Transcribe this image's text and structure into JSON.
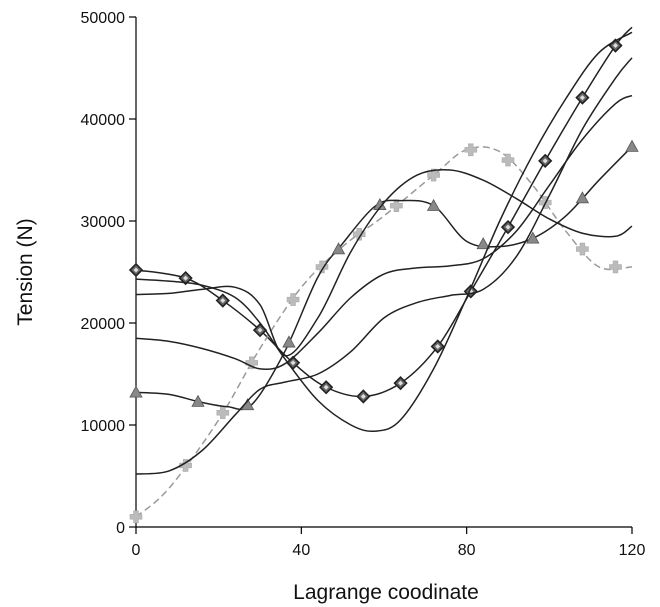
{
  "chart_data": {
    "type": "line",
    "title": "",
    "xlabel": "Lagrange coodinate",
    "ylabel": "Tension (N)",
    "xlim": [
      0,
      120
    ],
    "ylim": [
      0,
      50000
    ],
    "x_ticks": [
      0,
      40,
      80,
      120
    ],
    "y_ticks": [
      0,
      10000,
      20000,
      30000,
      40000,
      50000
    ],
    "x_tick_labels": [
      "0",
      "40",
      "80",
      "120"
    ],
    "y_tick_labels": [
      "0",
      "10000",
      "20000",
      "30000",
      "40000",
      "50000"
    ],
    "grid": false,
    "legend": "none",
    "series": [
      {
        "color": "#222222",
        "dash": "solid",
        "marker": "diamond",
        "marker_color": "#666666",
        "x": [
          0,
          12,
          21,
          30,
          38,
          46,
          55,
          64,
          73,
          81,
          90,
          99,
          108,
          116,
          120
        ],
        "y": [
          25200,
          24400,
          22200,
          19300,
          16100,
          13700,
          12800,
          14100,
          17700,
          23100,
          29400,
          35900,
          42100,
          47200,
          49000
        ],
        "markers_x": [
          0,
          12,
          21,
          30,
          38,
          46,
          55,
          64,
          73,
          81,
          90,
          99,
          108,
          116
        ]
      },
      {
        "color": "#9a9a9a",
        "dash": "dashed",
        "marker": "cross",
        "marker_color": "#bbbbbb",
        "x": [
          0,
          8,
          20,
          30,
          40,
          50,
          60,
          72,
          80,
          88,
          96,
          104,
          112,
          120
        ],
        "y": [
          1000,
          3800,
          10500,
          17500,
          23500,
          27500,
          30500,
          34500,
          37000,
          36800,
          33500,
          29000,
          25500,
          25500
        ],
        "markers_x": [
          0,
          12,
          21,
          28,
          38,
          45,
          54,
          63,
          72,
          81,
          90,
          99,
          108,
          116
        ]
      },
      {
        "color": "#222222",
        "dash": "solid",
        "marker": "triangle",
        "marker_color": "#888888",
        "x": [
          0,
          8,
          15,
          22,
          28,
          36,
          44,
          50,
          58,
          64,
          72,
          80,
          88,
          96,
          104,
          112,
          120
        ],
        "y": [
          13200,
          13000,
          12300,
          11800,
          12000,
          17200,
          24500,
          27800,
          31500,
          32000,
          31500,
          28000,
          27500,
          28300,
          30500,
          34000,
          37300
        ],
        "markers_x": [
          0,
          15,
          27,
          37,
          49,
          59,
          72,
          84,
          96,
          108,
          120
        ]
      },
      {
        "color": "#222222",
        "dash": "solid",
        "marker": "none",
        "x": [
          0,
          8,
          16,
          24,
          30,
          36,
          44,
          52,
          58,
          64,
          72,
          80,
          88,
          96,
          104,
          112,
          120
        ],
        "y": [
          24300,
          24100,
          23700,
          22500,
          20000,
          16500,
          12400,
          10000,
          9400,
          10500,
          15500,
          22500,
          30000,
          36500,
          42000,
          46500,
          48500
        ],
        "markers_x": []
      },
      {
        "color": "#222222",
        "dash": "solid",
        "marker": "none",
        "x": [
          0,
          8,
          16,
          24,
          30,
          36,
          44,
          52,
          60,
          68,
          76,
          84,
          92,
          100,
          108,
          116,
          120
        ],
        "y": [
          22800,
          22900,
          23300,
          23500,
          21800,
          16800,
          20500,
          27000,
          31800,
          34500,
          35000,
          34000,
          32200,
          30200,
          28800,
          28500,
          29500
        ],
        "markers_x": []
      },
      {
        "color": "#222222",
        "dash": "solid",
        "marker": "none",
        "x": [
          0,
          8,
          16,
          24,
          30,
          36,
          44,
          52,
          60,
          68,
          76,
          84,
          92,
          100,
          108,
          116,
          120
        ],
        "y": [
          18500,
          18200,
          17500,
          16500,
          15500,
          16000,
          19000,
          22500,
          24800,
          25400,
          25600,
          26300,
          29000,
          33500,
          38000,
          41500,
          42300
        ],
        "markers_x": []
      },
      {
        "color": "#222222",
        "dash": "solid",
        "marker": "none",
        "x": [
          0,
          8,
          16,
          24,
          30,
          36,
          44,
          52,
          60,
          68,
          76,
          84,
          92,
          100,
          108,
          116,
          120
        ],
        "y": [
          5200,
          5500,
          7500,
          11000,
          13500,
          14200,
          15000,
          17200,
          20500,
          22000,
          22700,
          23300,
          26500,
          32500,
          39000,
          44000,
          46000
        ],
        "markers_x": []
      }
    ]
  }
}
